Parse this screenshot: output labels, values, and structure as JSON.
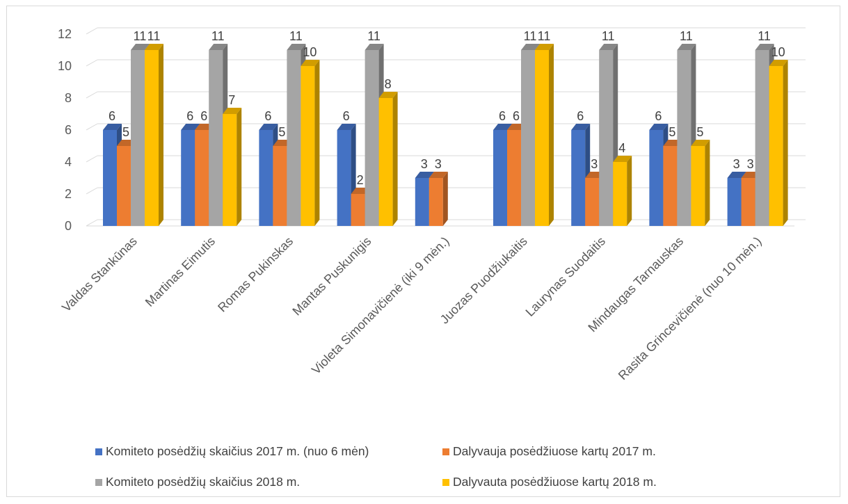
{
  "chart_data": {
    "type": "bar",
    "style": "3d-clustered-column",
    "categories": [
      "Valdas Stankūnas",
      "Martinas Eimutis",
      "Romas Pukinskas",
      "Mantas Puskunigis",
      "Violeta Simonavičienė (iki 9 mėn.)",
      "Juozas Puodžiukaitis",
      "Laurynas Suodaitis",
      "Mindaugas Tarnauskas",
      "Rasita Grincevičienė (nuo 10 mėn.)"
    ],
    "series": [
      {
        "name": "Komiteto posėdžių skaičius 2017 m. (nuo 6 mėn)",
        "color": "#4472c4",
        "values": [
          6,
          6,
          6,
          6,
          3,
          6,
          6,
          6,
          3
        ]
      },
      {
        "name": "Dalyvauja posėdžiuose kartų 2017 m.",
        "color": "#ed7d31",
        "values": [
          5,
          6,
          5,
          2,
          3,
          6,
          3,
          5,
          3
        ]
      },
      {
        "name": "Komiteto posėdžių skaičius 2018 m.",
        "color": "#a5a5a5",
        "values": [
          11,
          11,
          11,
          11,
          null,
          11,
          11,
          11,
          11
        ]
      },
      {
        "name": "Dalyvauta posėdžiuose kartų 2018 m.",
        "color": "#ffc000",
        "values": [
          11,
          7,
          10,
          8,
          null,
          11,
          4,
          5,
          10
        ]
      }
    ],
    "yticks": [
      0,
      2,
      4,
      6,
      8,
      10,
      12
    ],
    "ylim": [
      0,
      12
    ],
    "grid": true,
    "data_labels": true,
    "legend_position": "bottom"
  }
}
